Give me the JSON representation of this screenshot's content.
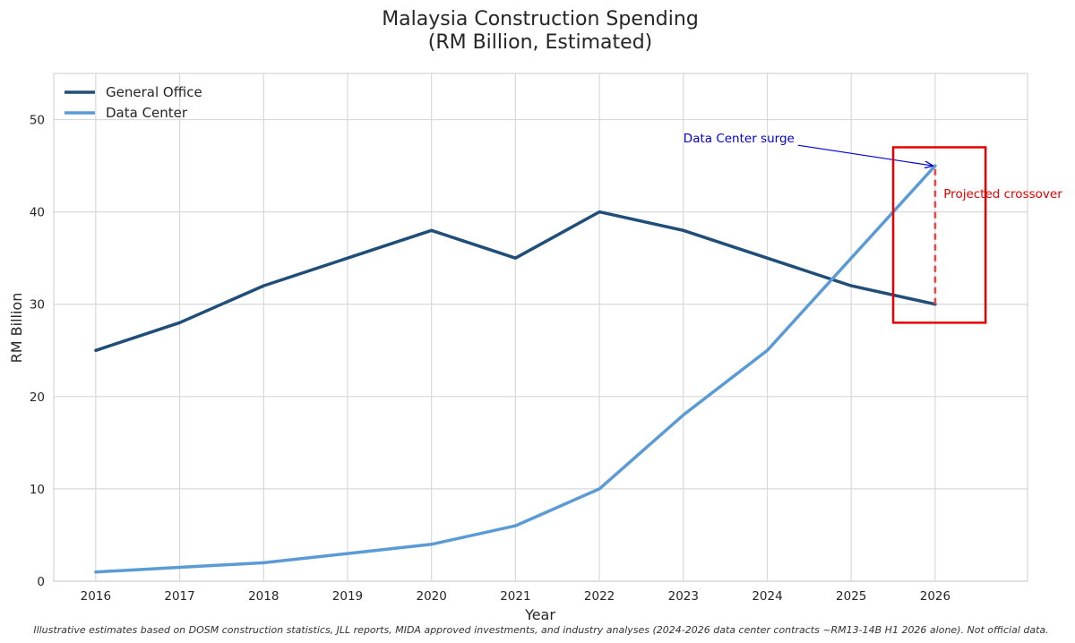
{
  "chart_data": {
    "type": "line",
    "title": "Malaysia Construction Spending",
    "subtitle": "(RM Billion, Estimated)",
    "xlabel": "Year",
    "ylabel": "RM Billion",
    "x": [
      2016,
      2017,
      2018,
      2019,
      2020,
      2021,
      2022,
      2023,
      2024,
      2025,
      2026
    ],
    "xlim": [
      2015.5,
      2027.1
    ],
    "ylim": [
      0,
      55
    ],
    "y_ticks": [
      0,
      10,
      20,
      30,
      40,
      50
    ],
    "grid": true,
    "legend_position": "top-left",
    "series": [
      {
        "name": "General Office",
        "color": "#1f4e79",
        "values": [
          25,
          28,
          32,
          35,
          38,
          35,
          40,
          38,
          35,
          32,
          30
        ]
      },
      {
        "name": "Data Center",
        "color": "#5b9bd5",
        "values": [
          1,
          1.5,
          2,
          3,
          4,
          6,
          10,
          18,
          25,
          35,
          45
        ]
      }
    ],
    "annotations": [
      {
        "text": "Data Center surge",
        "color": "#0000cc",
        "text_at": [
          2023,
          48
        ],
        "arrow_to": [
          2026,
          45
        ]
      },
      {
        "text": "Projected crossover",
        "color": "#e60000",
        "text_at": [
          2026.1,
          42
        ],
        "dashed_from": [
          2026,
          30
        ],
        "dashed_to": [
          2026,
          45
        ]
      }
    ],
    "highlight_box": {
      "color": "#e60000",
      "x_range": [
        2025.5,
        2026.6
      ],
      "y_range": [
        28,
        47
      ]
    },
    "footnote": "Illustrative estimates based on DOSM construction statistics, JLL reports, MIDA approved investments, and industry analyses (2024-2026 data center contracts ~RM13-14B H1 2026 alone). Not official data."
  }
}
